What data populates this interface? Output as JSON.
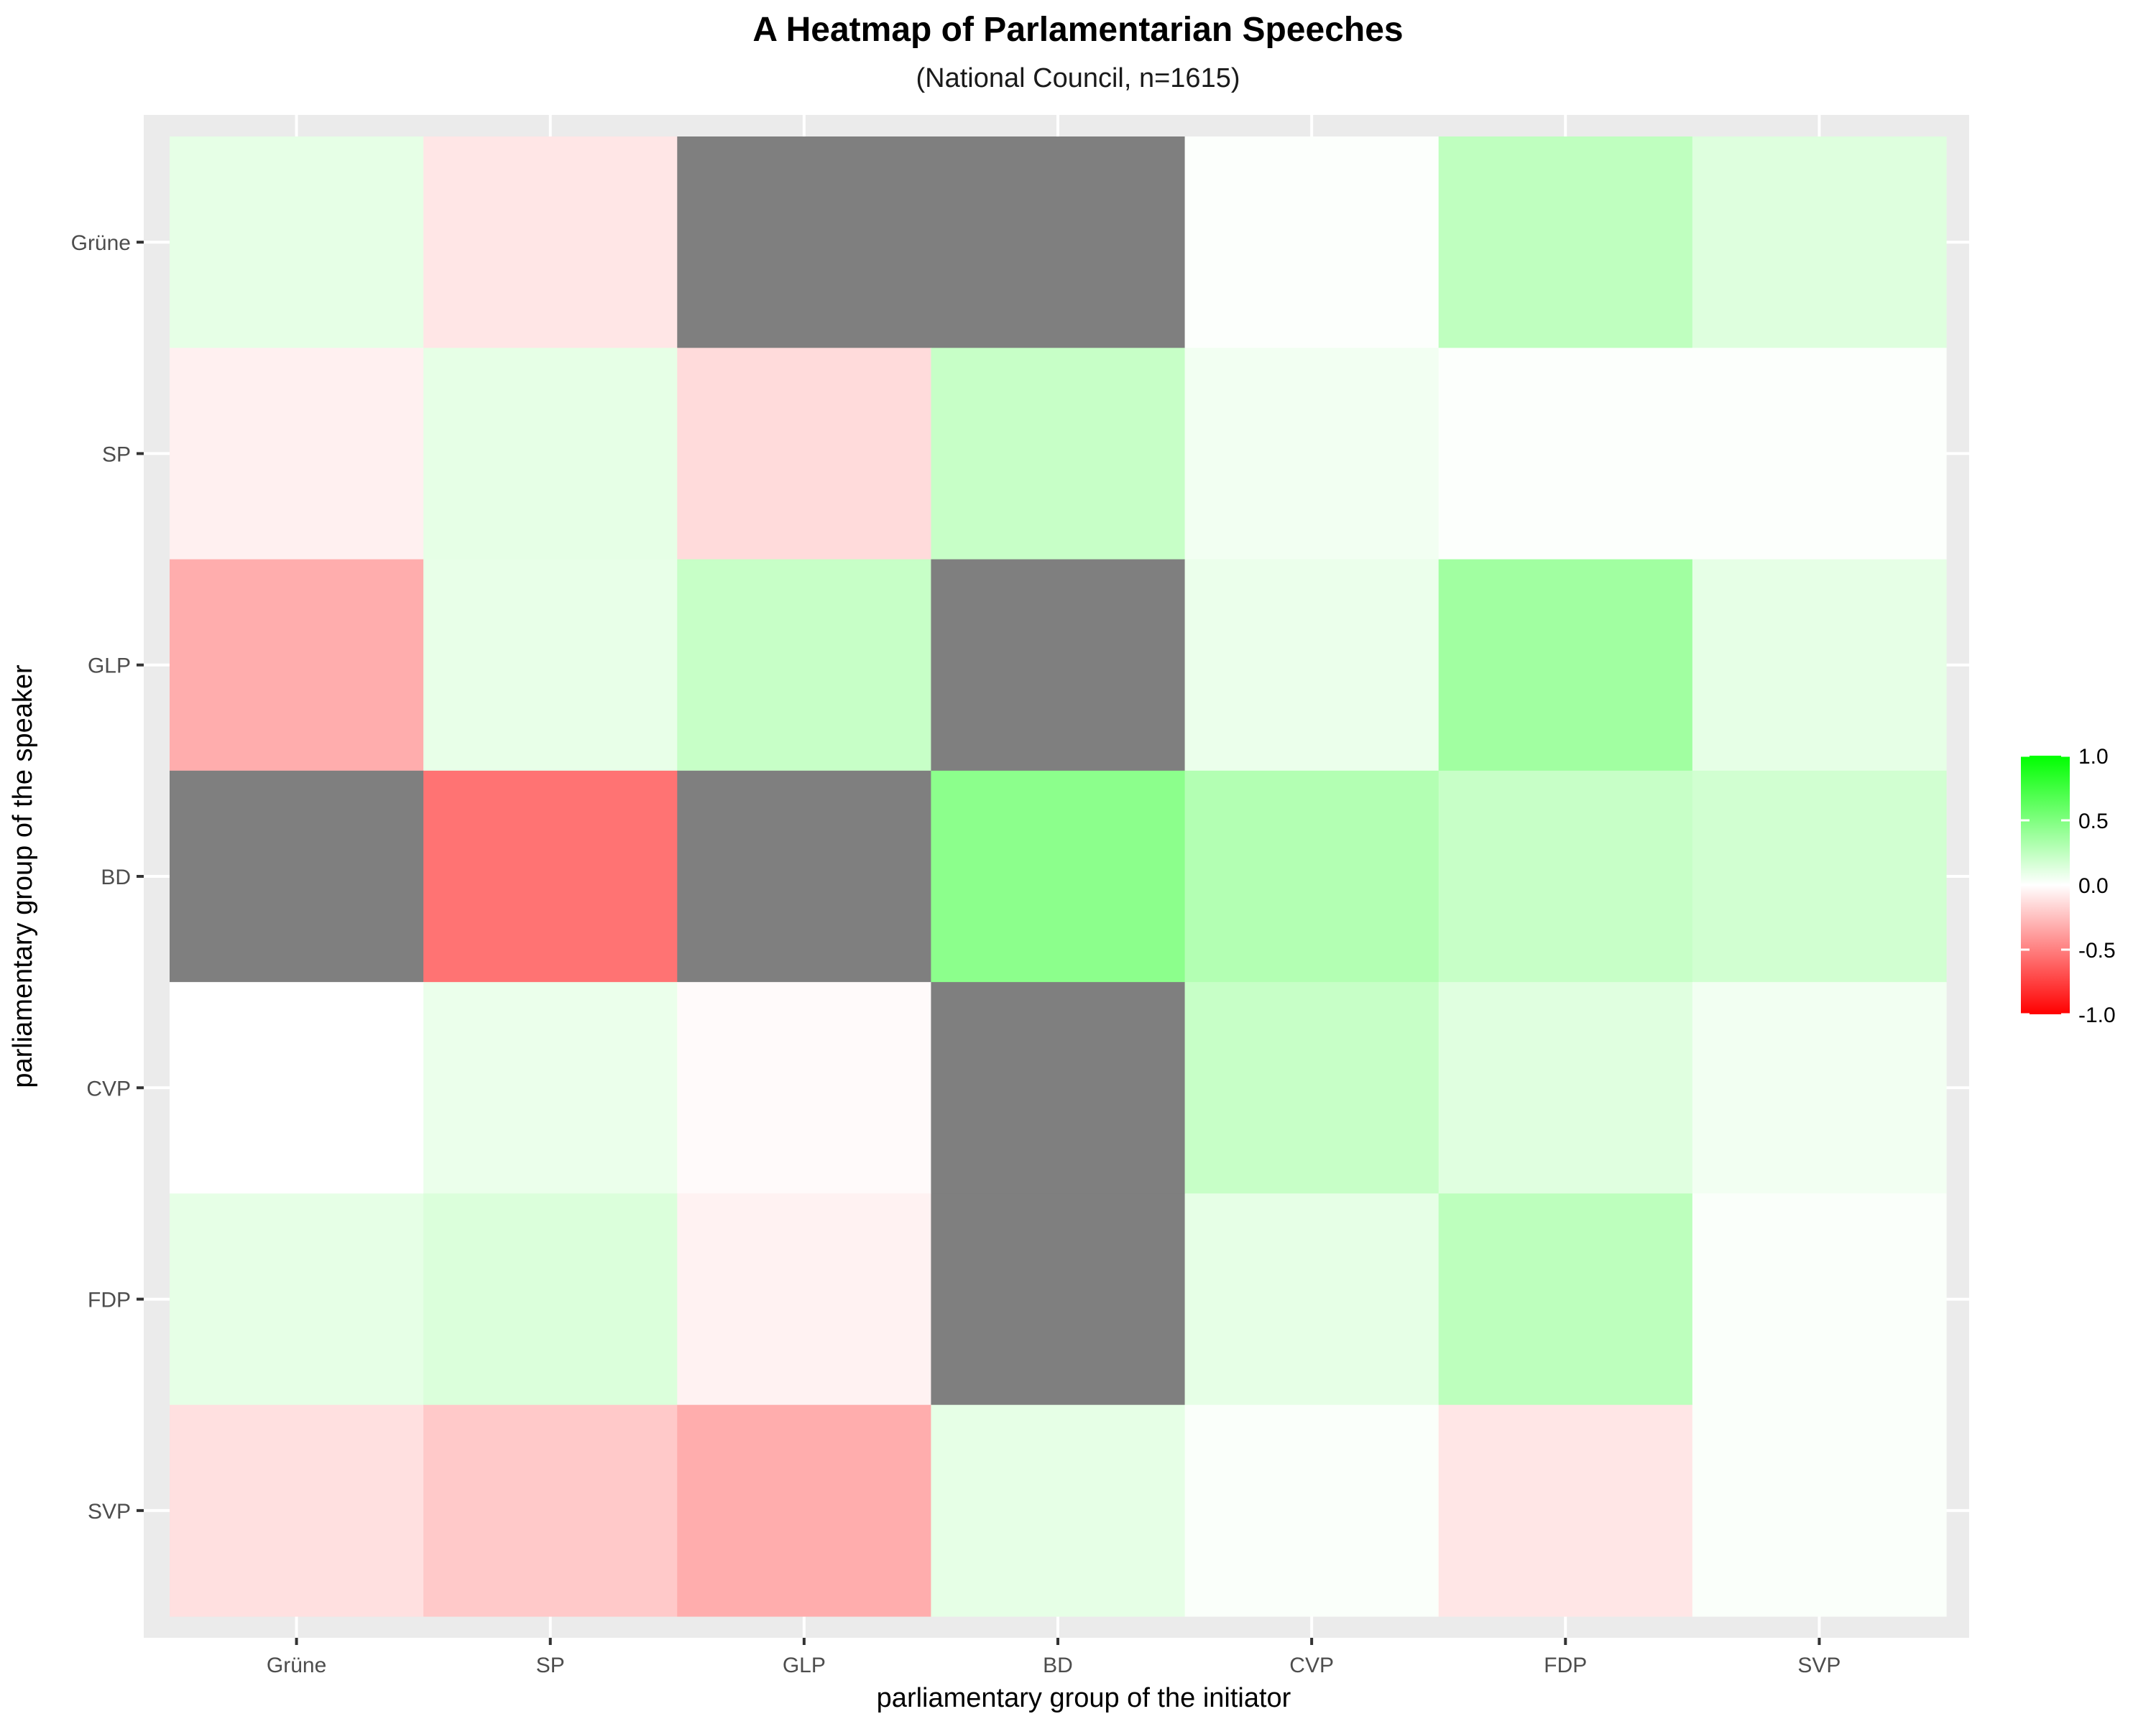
{
  "title": "A Heatmap of Parlamentarian Speeches",
  "subtitle": "(National Council, n=1615)",
  "colors": {
    "panel_background": "#ebebeb",
    "grid": "#ffffff",
    "missing": "#7f7f7f",
    "low": "#ff0000",
    "mid": "#ffffff",
    "high": "#00ff00"
  },
  "chart_data": {
    "type": "heatmap",
    "title": "A Heatmap of Parlamentarian Speeches",
    "subtitle": "(National Council, n=1615)",
    "xlabel": "parliamentary group of the initiator",
    "ylabel": "parliamentary group of the speaker",
    "x_categories": [
      "Grüne",
      "SP",
      "GLP",
      "BD",
      "CVP",
      "FDP",
      "SVP"
    ],
    "y_categories": [
      "Grüne",
      "SP",
      "GLP",
      "BD",
      "CVP",
      "FDP",
      "SVP"
    ],
    "values": [
      [
        0.1,
        -0.1,
        null,
        null,
        0.01,
        0.25,
        0.13
      ],
      [
        -0.06,
        0.1,
        -0.14,
        0.22,
        0.05,
        0.01,
        0.01
      ],
      [
        -0.32,
        0.09,
        0.22,
        null,
        0.08,
        0.37,
        0.1
      ],
      [
        null,
        -0.55,
        null,
        0.45,
        0.3,
        0.22,
        0.18
      ],
      [
        0.0,
        0.08,
        -0.02,
        null,
        0.22,
        0.12,
        0.05
      ],
      [
        0.1,
        0.14,
        -0.05,
        null,
        0.1,
        0.26,
        0.02
      ],
      [
        -0.12,
        -0.21,
        -0.32,
        0.1,
        0.02,
        -0.1,
        0.02
      ]
    ],
    "legend": {
      "position": "right",
      "ticks": [
        1.0,
        0.5,
        0.0,
        -0.5,
        -1.0
      ],
      "tick_labels": [
        "1.0",
        "0.5",
        "0.0",
        "-0.5",
        "-1.0"
      ],
      "range": [
        -1,
        1
      ]
    },
    "grid": true
  }
}
